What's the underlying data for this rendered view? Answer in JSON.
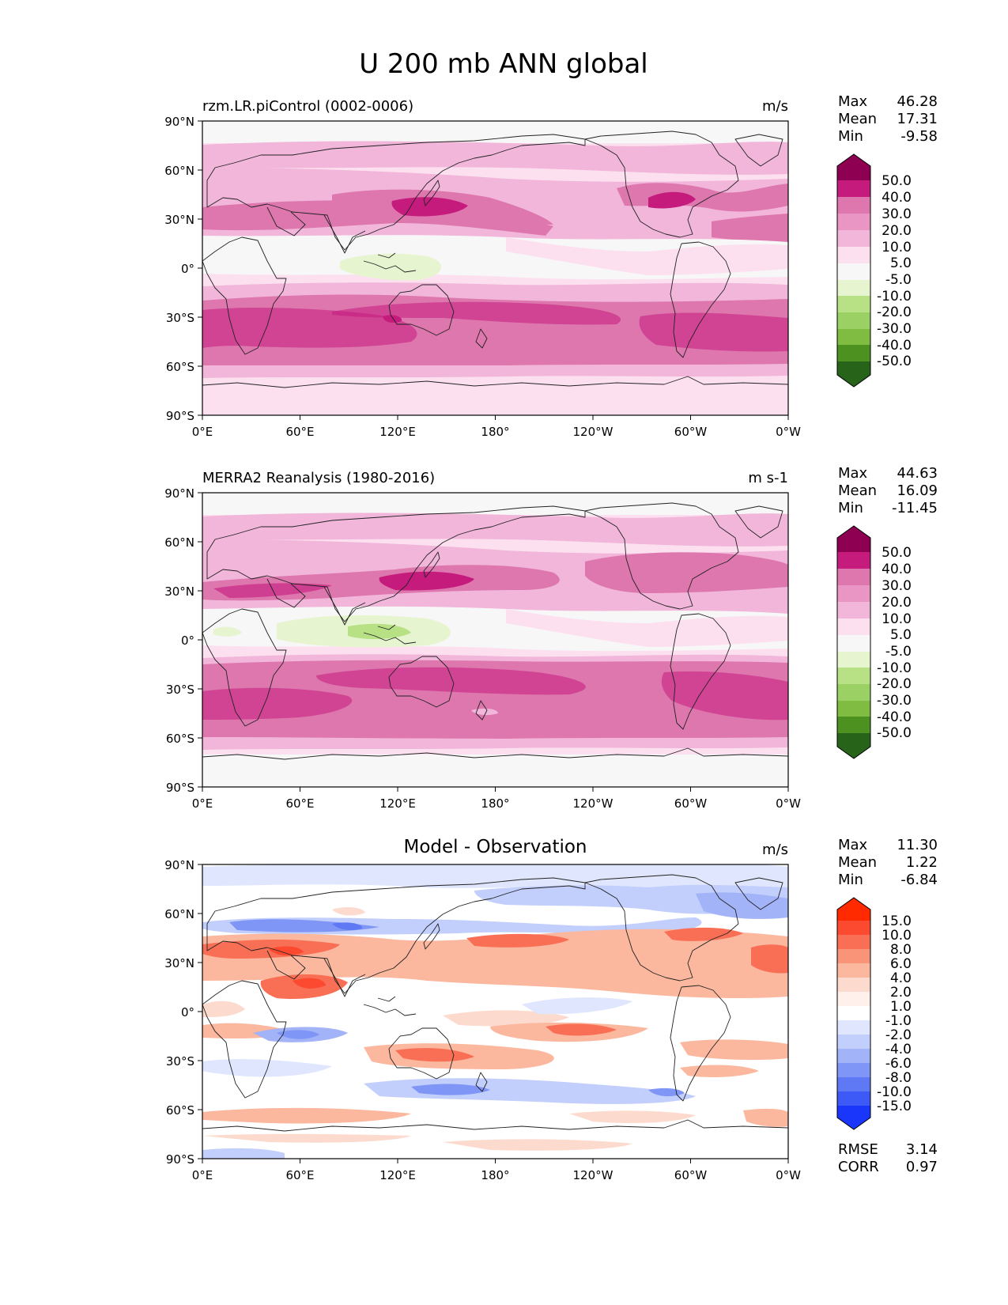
{
  "figure": {
    "title": "U 200 mb ANN global"
  },
  "chart_data": [
    {
      "type": "heatmap",
      "panel": "test",
      "title": "rzm.LR.piControl (0002-0006)",
      "units": "m/s",
      "stats": {
        "max_label": "Max",
        "max": "46.28",
        "mean_label": "Mean",
        "mean": "17.31",
        "min_label": "Min",
        "min": "-9.58"
      },
      "levels": [
        "50.0",
        "40.0",
        "30.0",
        "20.0",
        "10.0",
        "5.0",
        "-5.0",
        "-10.0",
        "-20.0",
        "-30.0",
        "-40.0",
        "-50.0"
      ],
      "colors": [
        "#8e0152",
        "#c51b7d",
        "#de77ae",
        "#f1b6da",
        "#fde0ef",
        "#f7f7f7",
        "#e6f5d0",
        "#b8e186",
        "#7fbc41",
        "#4d9221",
        "#276419"
      ],
      "field_rows_20deg": [
        [
          4,
          4,
          4,
          3,
          3,
          3,
          3,
          3,
          3
        ],
        [
          2,
          3,
          4,
          4,
          3,
          3,
          2,
          3,
          4
        ],
        [
          1,
          2,
          2,
          1,
          2,
          2,
          1,
          2,
          2
        ],
        [
          3,
          4,
          5,
          5,
          4,
          4,
          3,
          4,
          4
        ],
        [
          2,
          3,
          3,
          3,
          3,
          3,
          3,
          3,
          3
        ],
        [
          6,
          6,
          5,
          6,
          6,
          6,
          6,
          6,
          6
        ],
        [
          4,
          4,
          4,
          4,
          4,
          4,
          4,
          4,
          4
        ],
        [
          3,
          3,
          3,
          3,
          3,
          3,
          3,
          3,
          3
        ]
      ],
      "xticks": [
        "0°E",
        "60°E",
        "120°E",
        "180°",
        "120°W",
        "60°W",
        "0°W"
      ],
      "yticks": [
        "90°N",
        "60°N",
        "30°N",
        "0°",
        "30°S",
        "60°S",
        "90°S"
      ]
    },
    {
      "type": "heatmap",
      "panel": "reference",
      "title": "MERRA2 Reanalysis (1980-2016)",
      "units": "m s-1",
      "stats": {
        "max_label": "Max",
        "max": "44.63",
        "mean_label": "Mean",
        "mean": "16.09",
        "min_label": "Min",
        "min": "-11.45"
      },
      "levels": [
        "50.0",
        "40.0",
        "30.0",
        "20.0",
        "10.0",
        "5.0",
        "-5.0",
        "-10.0",
        "-20.0",
        "-30.0",
        "-40.0",
        "-50.0"
      ],
      "colors": [
        "#8e0152",
        "#c51b7d",
        "#de77ae",
        "#f1b6da",
        "#fde0ef",
        "#f7f7f7",
        "#e6f5d0",
        "#b8e186",
        "#7fbc41",
        "#4d9221",
        "#276419"
      ],
      "field_rows_20deg": [
        [
          4,
          4,
          4,
          3,
          3,
          3,
          3,
          3,
          3
        ],
        [
          2,
          3,
          3,
          3,
          3,
          3,
          3,
          3,
          3
        ],
        [
          1,
          1,
          1,
          1,
          2,
          2,
          1,
          2,
          2
        ],
        [
          3,
          4,
          5,
          5,
          4,
          4,
          3,
          4,
          4
        ],
        [
          2,
          3,
          3,
          3,
          3,
          3,
          3,
          3,
          3
        ],
        [
          6,
          6,
          5,
          6,
          6,
          6,
          6,
          6,
          6
        ],
        [
          4,
          4,
          4,
          4,
          4,
          4,
          4,
          4,
          4
        ],
        [
          3,
          3,
          3,
          3,
          3,
          3,
          3,
          3,
          3
        ]
      ],
      "xticks": [
        "0°E",
        "60°E",
        "120°E",
        "180°",
        "120°W",
        "60°W",
        "0°W"
      ],
      "yticks": [
        "90°N",
        "60°N",
        "30°N",
        "0°",
        "30°S",
        "60°S",
        "90°S"
      ]
    },
    {
      "type": "heatmap",
      "panel": "difference",
      "title": "Model - Observation",
      "units": "m/s",
      "stats": {
        "max_label": "Max",
        "max": "11.30",
        "mean_label": "Mean",
        "mean": "1.22",
        "min_label": "Min",
        "min": "-6.84"
      },
      "levels": [
        "15.0",
        "10.0",
        "8.0",
        "6.0",
        "4.0",
        "2.0",
        "1.0",
        "-1.0",
        "-2.0",
        "-4.0",
        "-6.0",
        "-8.0",
        "-10.0",
        "-15.0"
      ],
      "colors": [
        "#ff2a00",
        "#fb4a2f",
        "#f96f55",
        "#f99478",
        "#fbb89e",
        "#fcdacd",
        "#ffffff",
        "#dfe6fd",
        "#c2cefb",
        "#a2b3f8",
        "#8096f6",
        "#5f79f5",
        "#3d59f6",
        "#1a36fa"
      ],
      "rmse_label": "RMSE",
      "rmse": "3.14",
      "corr_label": "CORR",
      "corr": "0.97",
      "xticks": [
        "0°E",
        "60°E",
        "120°E",
        "180°",
        "120°W",
        "60°W",
        "0°W"
      ],
      "yticks": [
        "90°N",
        "60°N",
        "30°N",
        "0°",
        "30°S",
        "60°S",
        "90°S"
      ]
    }
  ]
}
